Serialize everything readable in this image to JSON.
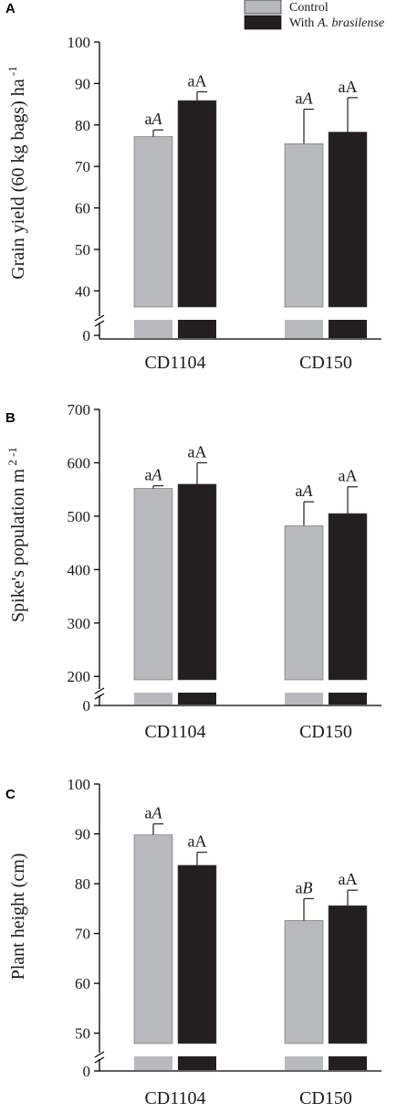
{
  "legend": [
    {
      "label": "Control",
      "color": "#b8b9bc"
    },
    {
      "label_plain": "With ",
      "label_italic": "A. brasilense",
      "color": "#231f20"
    }
  ],
  "chart_data": [
    {
      "type": "bar",
      "panel": "A",
      "ylabel": "Grain yield (60 kg bags) ha",
      "ylabel_sup": "-1",
      "yticks": [
        0,
        40,
        50,
        60,
        70,
        80,
        90,
        100
      ],
      "ylim": [
        35,
        100
      ],
      "axis_break": true,
      "categories": [
        "CD1104",
        "CD150"
      ],
      "series": [
        {
          "name": "Control",
          "values": [
            77.2,
            75.5
          ],
          "errors": [
            1.6,
            8.3
          ],
          "labels": [
            {
              "plain": "a",
              "italic": "A"
            },
            {
              "plain": "a",
              "italic": "A"
            }
          ]
        },
        {
          "name": "With A. brasilense",
          "values": [
            85.9,
            78.3
          ],
          "errors": [
            2.1,
            8.3
          ],
          "labels": [
            {
              "plain": "aA",
              "italic": ""
            },
            {
              "plain": "aA",
              "italic": ""
            }
          ]
        }
      ]
    },
    {
      "type": "bar",
      "panel": "B",
      "ylabel": "Spike's population m",
      "ylabel_sup": "2 -1",
      "yticks": [
        0,
        200,
        300,
        400,
        500,
        600,
        700
      ],
      "ylim": [
        185,
        700
      ],
      "axis_break": true,
      "categories": [
        "CD1104",
        "CD150"
      ],
      "series": [
        {
          "name": "Control",
          "values": [
            552,
            482
          ],
          "errors": [
            5,
            45
          ],
          "labels": [
            {
              "plain": "a",
              "italic": "A"
            },
            {
              "plain": "a",
              "italic": "A"
            }
          ]
        },
        {
          "name": "With A. brasilense",
          "values": [
            560,
            505
          ],
          "errors": [
            40,
            50
          ],
          "labels": [
            {
              "plain": "aA",
              "italic": ""
            },
            {
              "plain": "aA",
              "italic": ""
            }
          ]
        }
      ]
    },
    {
      "type": "bar",
      "panel": "C",
      "ylabel": "Plant height (cm)",
      "ylabel_sup": "",
      "yticks": [
        0,
        50,
        60,
        70,
        80,
        90,
        100
      ],
      "ylim": [
        47,
        100
      ],
      "axis_break": true,
      "categories": [
        "CD1104",
        "CD150"
      ],
      "series": [
        {
          "name": "Control",
          "values": [
            89.8,
            72.6
          ],
          "errors": [
            2.2,
            4.4
          ],
          "labels": [
            {
              "plain": "a",
              "italic": "A"
            },
            {
              "plain": "a",
              "italic": "B"
            }
          ]
        },
        {
          "name": "With A. brasilense",
          "values": [
            83.7,
            75.6
          ],
          "errors": [
            2.6,
            3.1
          ],
          "labels": [
            {
              "plain": "aA",
              "italic": ""
            },
            {
              "plain": "aA",
              "italic": ""
            }
          ]
        }
      ]
    }
  ]
}
